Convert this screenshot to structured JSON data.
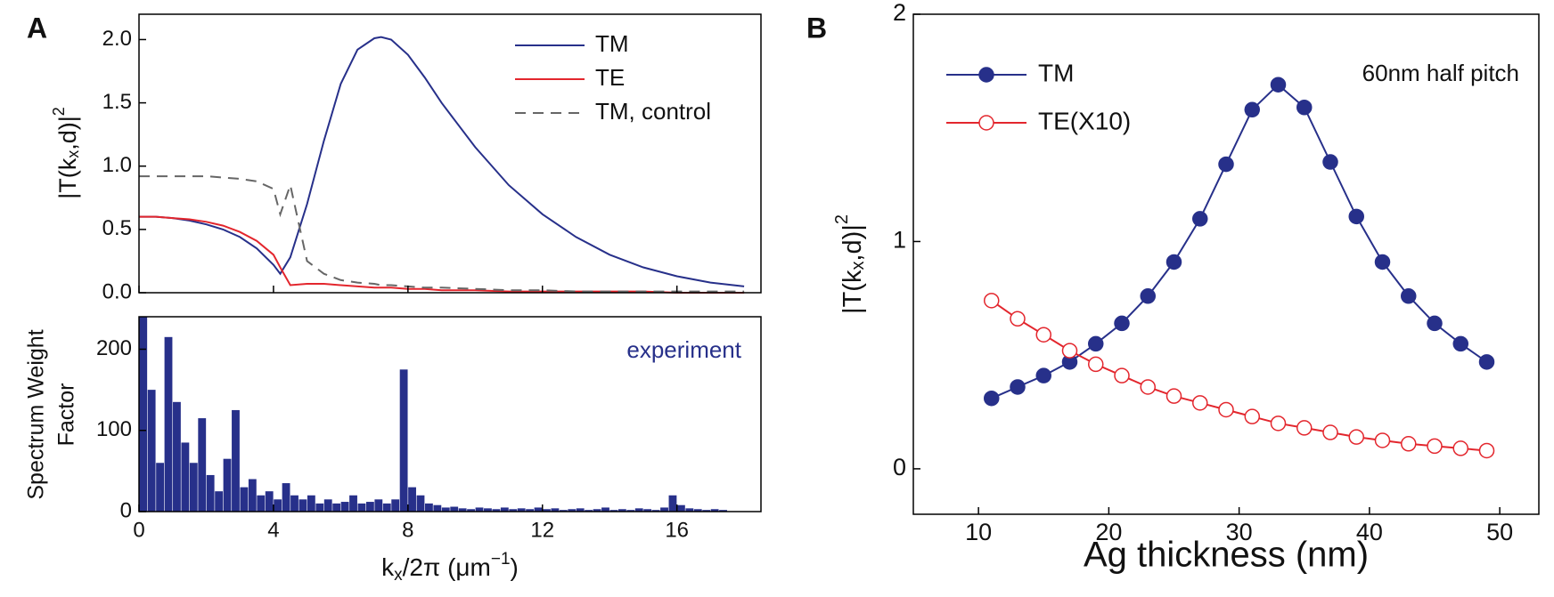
{
  "chart_data": [
    {
      "type": "line",
      "panel_label": "A",
      "ylabel": [
        "|T(k",
        "x",
        ",d)|",
        "2"
      ],
      "x": [
        0,
        0.5,
        1,
        1.5,
        2,
        2.5,
        3,
        3.5,
        4,
        4.2,
        4.5,
        5,
        5.5,
        6,
        6.5,
        7,
        7.2,
        7.5,
        8,
        8.5,
        9,
        10,
        11,
        12,
        13,
        14,
        15,
        16,
        17,
        18
      ],
      "series": [
        {
          "name": "TM",
          "color": "#27308a",
          "linestyle": "solid",
          "values": [
            0.6,
            0.6,
            0.59,
            0.57,
            0.54,
            0.5,
            0.44,
            0.35,
            0.22,
            0.15,
            0.28,
            0.7,
            1.2,
            1.65,
            1.92,
            2.01,
            2.02,
            2.0,
            1.88,
            1.7,
            1.5,
            1.15,
            0.85,
            0.62,
            0.44,
            0.3,
            0.2,
            0.13,
            0.08,
            0.05
          ]
        },
        {
          "name": "TE",
          "color": "#e3262d",
          "linestyle": "solid",
          "values": [
            0.6,
            0.6,
            0.59,
            0.58,
            0.56,
            0.53,
            0.48,
            0.41,
            0.3,
            0.2,
            0.06,
            0.07,
            0.07,
            0.06,
            0.05,
            0.04,
            0.04,
            0.04,
            0.03,
            0.03,
            0.02,
            0.02,
            0.01,
            0.01,
            0.01,
            0.01,
            0.01,
            0,
            0,
            0
          ]
        },
        {
          "name": "TM, control",
          "color": "#666666",
          "linestyle": "dashed",
          "values": [
            0.92,
            0.92,
            0.92,
            0.92,
            0.92,
            0.91,
            0.9,
            0.88,
            0.82,
            0.62,
            0.85,
            0.25,
            0.15,
            0.1,
            0.08,
            0.07,
            0.06,
            0.06,
            0.05,
            0.04,
            0.04,
            0.03,
            0.02,
            0.02,
            0.01,
            0.01,
            0.01,
            0.01,
            0.01,
            0.01
          ]
        }
      ],
      "xlim": [
        0,
        18.5
      ],
      "xticks": [
        0,
        4,
        8,
        12,
        16
      ],
      "xtick_labels": false,
      "ylim": [
        0,
        2.2
      ],
      "yticks": [
        {
          "value": 0,
          "label": "0.0"
        },
        0.5,
        {
          "value": 1,
          "label": "1.0"
        },
        1.5,
        {
          "value": 2,
          "label": "2.0"
        }
      ],
      "legend": "upper right"
    },
    {
      "type": "histogram",
      "ylabel": [
        "Spectrum Weight",
        "Factor"
      ],
      "xlabel": [
        "k",
        "x",
        "/2π (μm",
        "−1",
        ")"
      ],
      "annotation": "experiment",
      "color": "#27308a",
      "bins": [
        0,
        0.25,
        0.5,
        0.75,
        1,
        1.25,
        1.5,
        1.75,
        2,
        2.25,
        2.5,
        2.75,
        3,
        3.25,
        3.5,
        3.75,
        4,
        4.25,
        4.5,
        4.75,
        5,
        5.25,
        5.5,
        5.75,
        6,
        6.25,
        6.5,
        6.75,
        7,
        7.25,
        7.5,
        7.75,
        8,
        8.25,
        8.5,
        8.75,
        9,
        9.25,
        9.5,
        9.75,
        10,
        10.25,
        10.5,
        10.75,
        11,
        11.25,
        11.5,
        11.75,
        12,
        12.25,
        12.5,
        12.75,
        13,
        13.25,
        13.5,
        13.75,
        14,
        14.25,
        14.5,
        14.75,
        15,
        15.25,
        15.5,
        15.75,
        16,
        16.25,
        16.5,
        16.75,
        17,
        17.25,
        17.5,
        17.75,
        18
      ],
      "values": [
        240,
        150,
        60,
        215,
        135,
        85,
        60,
        115,
        45,
        25,
        65,
        125,
        30,
        40,
        20,
        25,
        15,
        35,
        20,
        15,
        20,
        10,
        15,
        10,
        12,
        20,
        10,
        12,
        15,
        10,
        15,
        175,
        30,
        20,
        10,
        8,
        5,
        6,
        4,
        3,
        5,
        4,
        3,
        5,
        3,
        4,
        3,
        5,
        3,
        4,
        2,
        3,
        4,
        2,
        3,
        5,
        2,
        3,
        2,
        4,
        3,
        2,
        5,
        20,
        8,
        4,
        3,
        2,
        3,
        2,
        0,
        0
      ],
      "xlim": [
        0,
        18.5
      ],
      "xticks": [
        0,
        4,
        8,
        12,
        16
      ],
      "ylim": [
        0,
        240
      ],
      "yticks": [
        0,
        100,
        200
      ]
    },
    {
      "type": "line",
      "panel_label": "B",
      "annotation": "60nm half pitch",
      "xlabel": "Ag thickness (nm)",
      "ylabel": [
        "|T(k",
        "x",
        ",d)|",
        "2"
      ],
      "x": [
        11,
        13,
        15,
        17,
        19,
        21,
        23,
        25,
        27,
        29,
        31,
        33,
        35,
        37,
        39,
        41,
        43,
        45,
        47,
        49
      ],
      "series": [
        {
          "name": "TM",
          "color": "#27308a",
          "linestyle": "solid",
          "marker": "filled",
          "values": [
            0.31,
            0.36,
            0.41,
            0.47,
            0.55,
            0.64,
            0.76,
            0.91,
            1.1,
            1.34,
            1.58,
            1.69,
            1.59,
            1.35,
            1.11,
            0.91,
            0.76,
            0.64,
            0.55,
            0.47
          ]
        },
        {
          "name": "TE(X10)",
          "color": "#e3262d",
          "linestyle": "solid",
          "marker": "open",
          "values": [
            0.74,
            0.66,
            0.59,
            0.52,
            0.46,
            0.41,
            0.36,
            0.32,
            0.29,
            0.26,
            0.23,
            0.2,
            0.18,
            0.16,
            0.14,
            0.125,
            0.11,
            0.1,
            0.09,
            0.08
          ]
        }
      ],
      "xlim": [
        5,
        53
      ],
      "xticks": [
        10,
        20,
        30,
        40,
        50
      ],
      "ylim": [
        -0.2,
        2
      ],
      "yticks": [
        0,
        1,
        2
      ],
      "legend": "upper left"
    }
  ]
}
